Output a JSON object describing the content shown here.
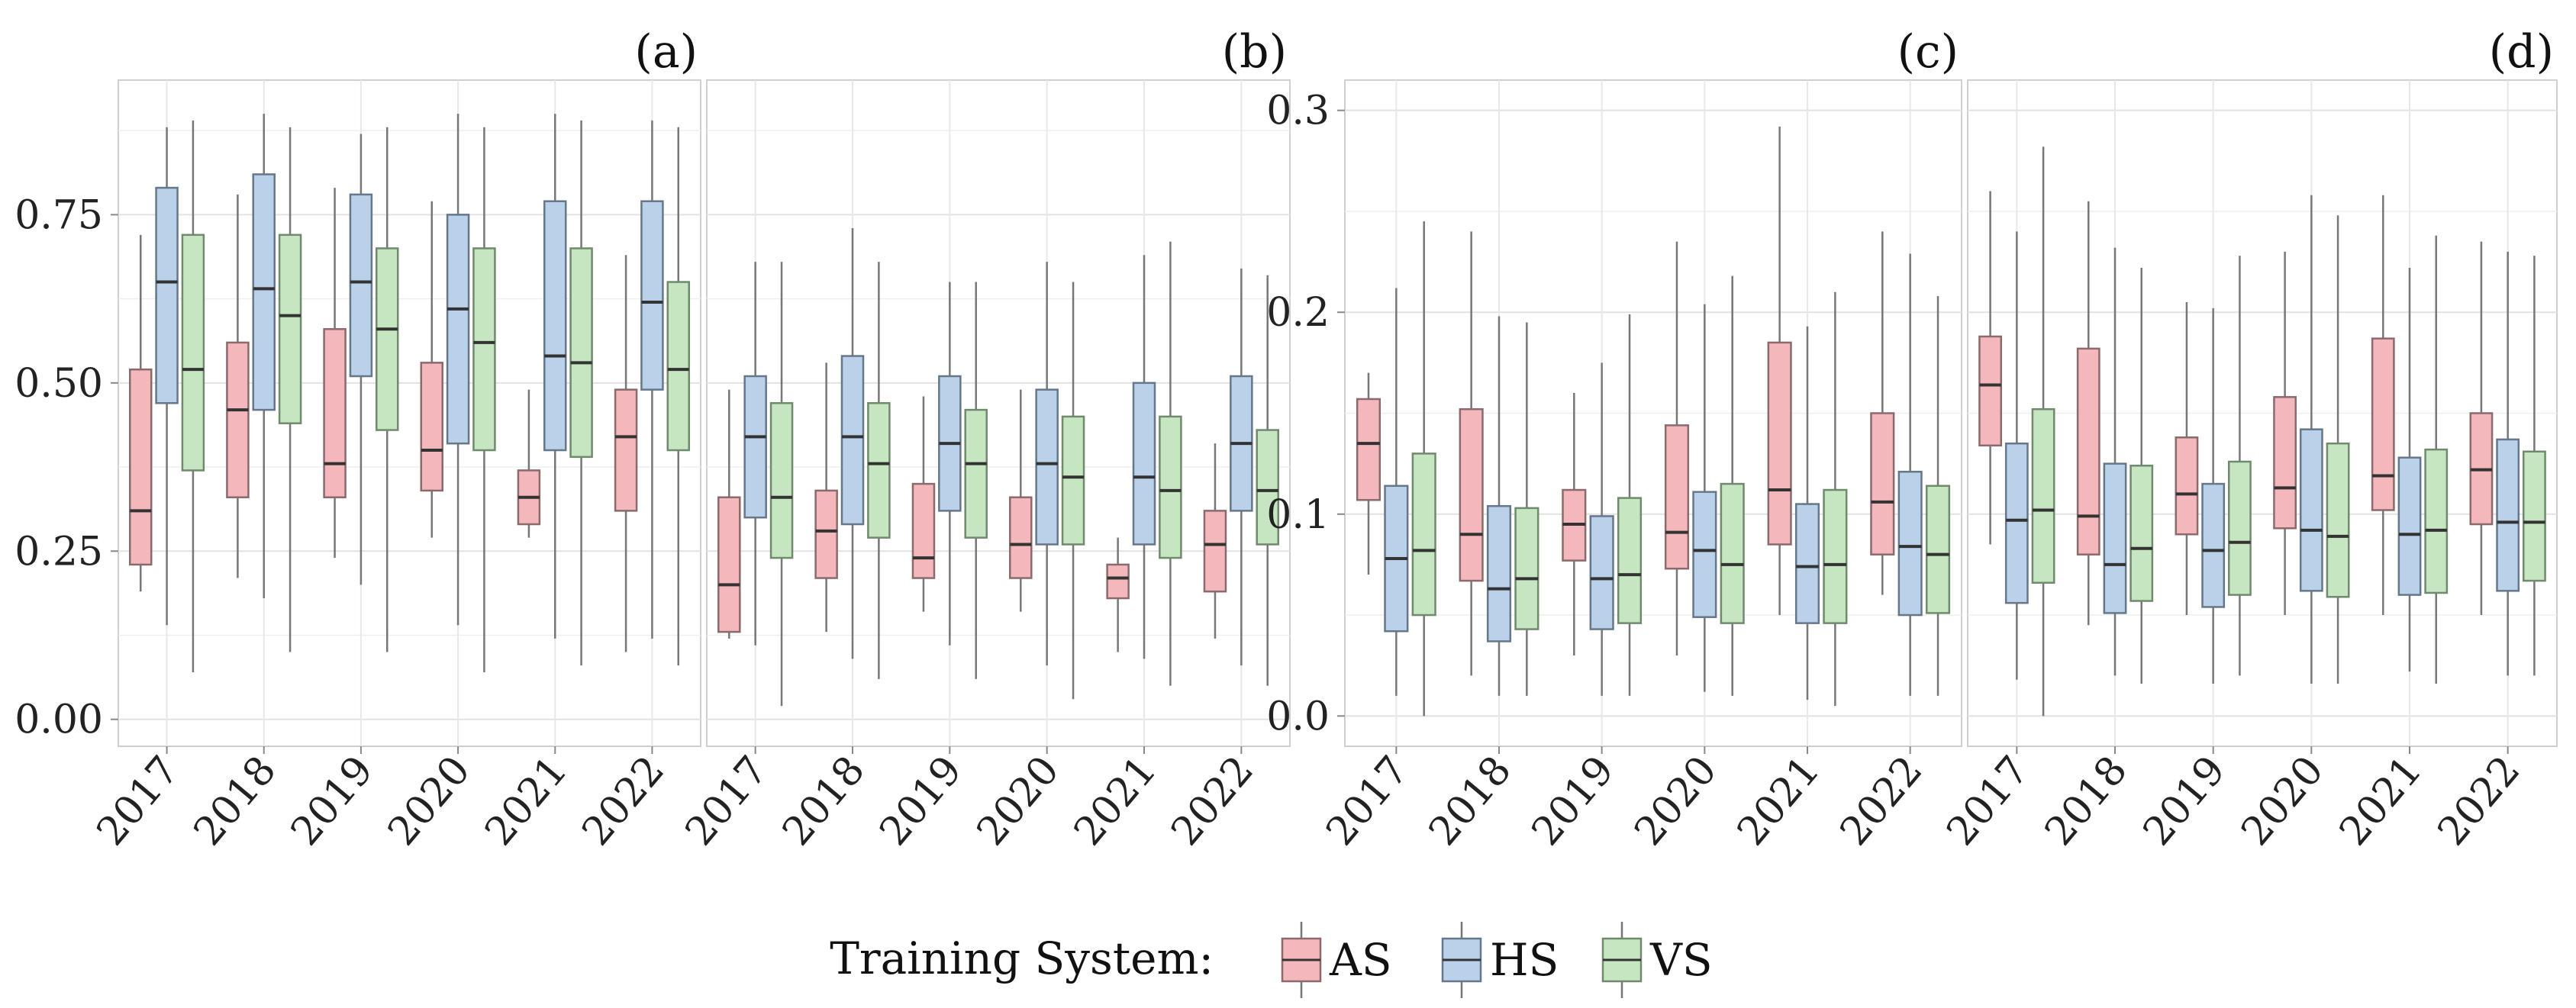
{
  "chart_data": {
    "type": "box",
    "legend": {
      "title": "Training System:",
      "placement": "bottom",
      "entries": [
        {
          "name": "AS",
          "color": "#f4b8bc"
        },
        {
          "name": "HS",
          "color": "#b9d2ea"
        },
        {
          "name": "VS",
          "color": "#c6e6c2"
        }
      ]
    },
    "categories": [
      "2017",
      "2018",
      "2019",
      "2020",
      "2021",
      "2022"
    ],
    "panels": [
      {
        "label": "(a)",
        "ylim": [
          -0.04,
          0.95
        ],
        "yticks": [
          "0.00",
          "0.25",
          "0.50",
          "0.75"
        ],
        "ytick_values": [
          0,
          0.25,
          0.5,
          0.75
        ],
        "series": [
          {
            "name": "AS",
            "boxes": [
              {
                "min": 0.19,
                "q1": 0.23,
                "median": 0.31,
                "q3": 0.52,
                "max": 0.72
              },
              {
                "min": 0.21,
                "q1": 0.33,
                "median": 0.46,
                "q3": 0.56,
                "max": 0.78
              },
              {
                "min": 0.24,
                "q1": 0.33,
                "median": 0.38,
                "q3": 0.58,
                "max": 0.79
              },
              {
                "min": 0.27,
                "q1": 0.34,
                "median": 0.4,
                "q3": 0.53,
                "max": 0.77
              },
              {
                "min": 0.27,
                "q1": 0.29,
                "median": 0.33,
                "q3": 0.37,
                "max": 0.49
              },
              {
                "min": 0.1,
                "q1": 0.31,
                "median": 0.42,
                "q3": 0.49,
                "max": 0.69
              }
            ]
          },
          {
            "name": "HS",
            "boxes": [
              {
                "min": 0.14,
                "q1": 0.47,
                "median": 0.65,
                "q3": 0.79,
                "max": 0.88
              },
              {
                "min": 0.18,
                "q1": 0.46,
                "median": 0.64,
                "q3": 0.81,
                "max": 0.9
              },
              {
                "min": 0.2,
                "q1": 0.51,
                "median": 0.65,
                "q3": 0.78,
                "max": 0.87
              },
              {
                "min": 0.14,
                "q1": 0.41,
                "median": 0.61,
                "q3": 0.75,
                "max": 0.9
              },
              {
                "min": 0.12,
                "q1": 0.4,
                "median": 0.54,
                "q3": 0.77,
                "max": 0.9
              },
              {
                "min": 0.12,
                "q1": 0.49,
                "median": 0.62,
                "q3": 0.77,
                "max": 0.89
              }
            ]
          },
          {
            "name": "VS",
            "boxes": [
              {
                "min": 0.07,
                "q1": 0.37,
                "median": 0.52,
                "q3": 0.72,
                "max": 0.89
              },
              {
                "min": 0.1,
                "q1": 0.44,
                "median": 0.6,
                "q3": 0.72,
                "max": 0.88
              },
              {
                "min": 0.1,
                "q1": 0.43,
                "median": 0.58,
                "q3": 0.7,
                "max": 0.88
              },
              {
                "min": 0.07,
                "q1": 0.4,
                "median": 0.56,
                "q3": 0.7,
                "max": 0.88
              },
              {
                "min": 0.08,
                "q1": 0.39,
                "median": 0.53,
                "q3": 0.7,
                "max": 0.89
              },
              {
                "min": 0.08,
                "q1": 0.4,
                "median": 0.52,
                "q3": 0.65,
                "max": 0.88
              }
            ]
          }
        ]
      },
      {
        "label": "(b)",
        "ylim": [
          -0.04,
          0.95
        ],
        "yticks": [],
        "ytick_values": [
          0,
          0.25,
          0.5,
          0.75
        ],
        "series": [
          {
            "name": "AS",
            "boxes": [
              {
                "min": 0.12,
                "q1": 0.13,
                "median": 0.2,
                "q3": 0.33,
                "max": 0.49
              },
              {
                "min": 0.13,
                "q1": 0.21,
                "median": 0.28,
                "q3": 0.34,
                "max": 0.53
              },
              {
                "min": 0.16,
                "q1": 0.21,
                "median": 0.24,
                "q3": 0.35,
                "max": 0.48
              },
              {
                "min": 0.16,
                "q1": 0.21,
                "median": 0.26,
                "q3": 0.33,
                "max": 0.49
              },
              {
                "min": 0.1,
                "q1": 0.18,
                "median": 0.21,
                "q3": 0.23,
                "max": 0.27
              },
              {
                "min": 0.12,
                "q1": 0.19,
                "median": 0.26,
                "q3": 0.31,
                "max": 0.41
              }
            ]
          },
          {
            "name": "HS",
            "boxes": [
              {
                "min": 0.11,
                "q1": 0.3,
                "median": 0.42,
                "q3": 0.51,
                "max": 0.68
              },
              {
                "min": 0.09,
                "q1": 0.29,
                "median": 0.42,
                "q3": 0.54,
                "max": 0.73
              },
              {
                "min": 0.11,
                "q1": 0.31,
                "median": 0.41,
                "q3": 0.51,
                "max": 0.65
              },
              {
                "min": 0.08,
                "q1": 0.26,
                "median": 0.38,
                "q3": 0.49,
                "max": 0.68
              },
              {
                "min": 0.09,
                "q1": 0.26,
                "median": 0.36,
                "q3": 0.5,
                "max": 0.69
              },
              {
                "min": 0.08,
                "q1": 0.31,
                "median": 0.41,
                "q3": 0.51,
                "max": 0.67
              }
            ]
          },
          {
            "name": "VS",
            "boxes": [
              {
                "min": 0.02,
                "q1": 0.24,
                "median": 0.33,
                "q3": 0.47,
                "max": 0.68
              },
              {
                "min": 0.06,
                "q1": 0.27,
                "median": 0.38,
                "q3": 0.47,
                "max": 0.68
              },
              {
                "min": 0.06,
                "q1": 0.27,
                "median": 0.38,
                "q3": 0.46,
                "max": 0.65
              },
              {
                "min": 0.03,
                "q1": 0.26,
                "median": 0.36,
                "q3": 0.45,
                "max": 0.65
              },
              {
                "min": 0.05,
                "q1": 0.24,
                "median": 0.34,
                "q3": 0.45,
                "max": 0.71
              },
              {
                "min": 0.05,
                "q1": 0.26,
                "median": 0.34,
                "q3": 0.43,
                "max": 0.66
              }
            ]
          }
        ]
      },
      {
        "label": "(c)",
        "ylim": [
          -0.015,
          0.315
        ],
        "yticks": [
          "0.0",
          "0.1",
          "0.2",
          "0.3"
        ],
        "ytick_values": [
          0,
          0.1,
          0.2,
          0.3
        ],
        "series": [
          {
            "name": "AS",
            "boxes": [
              {
                "min": 0.07,
                "q1": 0.107,
                "median": 0.135,
                "q3": 0.157,
                "max": 0.17
              },
              {
                "min": 0.02,
                "q1": 0.067,
                "median": 0.09,
                "q3": 0.152,
                "max": 0.24
              },
              {
                "min": 0.03,
                "q1": 0.077,
                "median": 0.095,
                "q3": 0.112,
                "max": 0.16
              },
              {
                "min": 0.03,
                "q1": 0.073,
                "median": 0.091,
                "q3": 0.144,
                "max": 0.235
              },
              {
                "min": 0.05,
                "q1": 0.085,
                "median": 0.112,
                "q3": 0.185,
                "max": 0.292
              },
              {
                "min": 0.06,
                "q1": 0.08,
                "median": 0.106,
                "q3": 0.15,
                "max": 0.24
              }
            ]
          },
          {
            "name": "HS",
            "boxes": [
              {
                "min": 0.01,
                "q1": 0.042,
                "median": 0.078,
                "q3": 0.114,
                "max": 0.212
              },
              {
                "min": 0.01,
                "q1": 0.037,
                "median": 0.063,
                "q3": 0.104,
                "max": 0.198
              },
              {
                "min": 0.01,
                "q1": 0.043,
                "median": 0.068,
                "q3": 0.099,
                "max": 0.175
              },
              {
                "min": 0.012,
                "q1": 0.049,
                "median": 0.082,
                "q3": 0.111,
                "max": 0.204
              },
              {
                "min": 0.008,
                "q1": 0.046,
                "median": 0.074,
                "q3": 0.105,
                "max": 0.193
              },
              {
                "min": 0.01,
                "q1": 0.05,
                "median": 0.084,
                "q3": 0.121,
                "max": 0.229
              }
            ]
          },
          {
            "name": "VS",
            "boxes": [
              {
                "min": 0.0,
                "q1": 0.05,
                "median": 0.082,
                "q3": 0.13,
                "max": 0.245
              },
              {
                "min": 0.01,
                "q1": 0.043,
                "median": 0.068,
                "q3": 0.103,
                "max": 0.195
              },
              {
                "min": 0.01,
                "q1": 0.046,
                "median": 0.07,
                "q3": 0.108,
                "max": 0.199
              },
              {
                "min": 0.01,
                "q1": 0.046,
                "median": 0.075,
                "q3": 0.115,
                "max": 0.218
              },
              {
                "min": 0.005,
                "q1": 0.046,
                "median": 0.075,
                "q3": 0.112,
                "max": 0.21
              },
              {
                "min": 0.01,
                "q1": 0.051,
                "median": 0.08,
                "q3": 0.114,
                "max": 0.208
              }
            ]
          }
        ]
      },
      {
        "label": "(d)",
        "ylim": [
          -0.015,
          0.315
        ],
        "yticks": [],
        "ytick_values": [
          0,
          0.1,
          0.2,
          0.3
        ],
        "series": [
          {
            "name": "AS",
            "boxes": [
              {
                "min": 0.085,
                "q1": 0.134,
                "median": 0.164,
                "q3": 0.188,
                "max": 0.26
              },
              {
                "min": 0.045,
                "q1": 0.08,
                "median": 0.099,
                "q3": 0.182,
                "max": 0.255
              },
              {
                "min": 0.05,
                "q1": 0.09,
                "median": 0.11,
                "q3": 0.138,
                "max": 0.205
              },
              {
                "min": 0.05,
                "q1": 0.093,
                "median": 0.113,
                "q3": 0.158,
                "max": 0.23
              },
              {
                "min": 0.05,
                "q1": 0.102,
                "median": 0.119,
                "q3": 0.187,
                "max": 0.258
              },
              {
                "min": 0.05,
                "q1": 0.095,
                "median": 0.122,
                "q3": 0.15,
                "max": 0.235
              }
            ]
          },
          {
            "name": "HS",
            "boxes": [
              {
                "min": 0.018,
                "q1": 0.056,
                "median": 0.097,
                "q3": 0.135,
                "max": 0.24
              },
              {
                "min": 0.02,
                "q1": 0.051,
                "median": 0.075,
                "q3": 0.125,
                "max": 0.232
              },
              {
                "min": 0.016,
                "q1": 0.054,
                "median": 0.082,
                "q3": 0.115,
                "max": 0.202
              },
              {
                "min": 0.016,
                "q1": 0.062,
                "median": 0.092,
                "q3": 0.142,
                "max": 0.258
              },
              {
                "min": 0.022,
                "q1": 0.06,
                "median": 0.09,
                "q3": 0.128,
                "max": 0.222
              },
              {
                "min": 0.02,
                "q1": 0.062,
                "median": 0.096,
                "q3": 0.137,
                "max": 0.23
              }
            ]
          },
          {
            "name": "VS",
            "boxes": [
              {
                "min": 0.0,
                "q1": 0.066,
                "median": 0.102,
                "q3": 0.152,
                "max": 0.282
              },
              {
                "min": 0.016,
                "q1": 0.057,
                "median": 0.083,
                "q3": 0.124,
                "max": 0.222
              },
              {
                "min": 0.02,
                "q1": 0.06,
                "median": 0.086,
                "q3": 0.126,
                "max": 0.228
              },
              {
                "min": 0.016,
                "q1": 0.059,
                "median": 0.089,
                "q3": 0.135,
                "max": 0.248
              },
              {
                "min": 0.016,
                "q1": 0.061,
                "median": 0.092,
                "q3": 0.132,
                "max": 0.238
              },
              {
                "min": 0.02,
                "q1": 0.067,
                "median": 0.096,
                "q3": 0.131,
                "max": 0.228
              }
            ]
          }
        ]
      }
    ]
  }
}
